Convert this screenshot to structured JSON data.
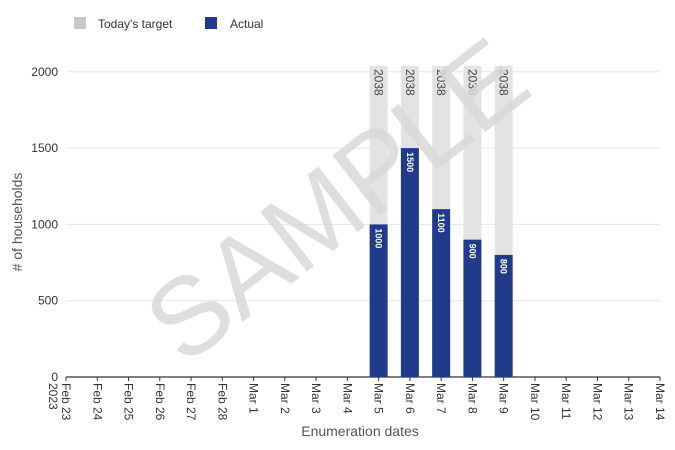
{
  "legend": {
    "items": [
      {
        "label": "Today's target",
        "color": "#c8c8c8"
      },
      {
        "label": "Actual",
        "color": "#1f3b8a"
      }
    ]
  },
  "watermark": "SAMPLE",
  "chart_data": {
    "type": "bar",
    "xlabel": "Enumeration dates",
    "ylabel": "# of households",
    "ylim": [
      0,
      2038
    ],
    "yticks": [
      0,
      500,
      1000,
      1500,
      2000
    ],
    "grid": true,
    "legend_position": "top-left",
    "categories": [
      "Feb 23\n2023",
      "Feb 24",
      "Feb 25",
      "Feb 26",
      "Feb 27",
      "Feb 28",
      "Mar 1",
      "Mar 2",
      "Mar 3",
      "Mar 4",
      "Mar 5",
      "Mar 6",
      "Mar 7",
      "Mar 8",
      "Mar 9",
      "Mar 10",
      "Mar 11",
      "Mar 12",
      "Mar 13",
      "Mar 14"
    ],
    "series": [
      {
        "name": "Today's target",
        "color": "#e3e3e3",
        "values": [
          null,
          null,
          null,
          null,
          null,
          null,
          null,
          null,
          null,
          null,
          2038,
          2038,
          2038,
          2038,
          2038,
          null,
          null,
          null,
          null,
          null
        ]
      },
      {
        "name": "Actual",
        "color": "#1f3b8a",
        "values": [
          null,
          null,
          null,
          null,
          null,
          null,
          null,
          null,
          null,
          null,
          1000,
          1500,
          1100,
          900,
          800,
          null,
          null,
          null,
          null,
          null
        ]
      }
    ]
  }
}
